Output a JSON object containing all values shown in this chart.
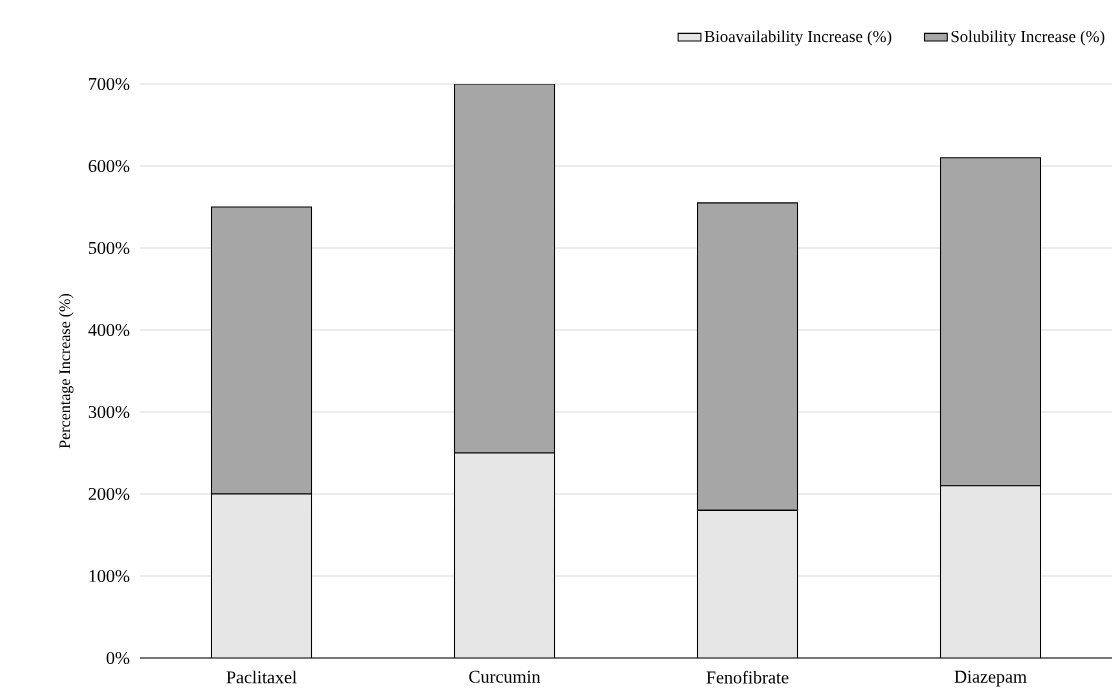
{
  "chart_data": {
    "type": "bar",
    "stacked": true,
    "ylabel": "Percentage Increase (%)",
    "categories": [
      "Paclitaxel",
      "Curcumin",
      "Fenofibrate",
      "Diazepam"
    ],
    "series": [
      {
        "name": "Bioavailability Increase (%)",
        "color": "#e6e6e6",
        "values": [
          200,
          250,
          180,
          210
        ]
      },
      {
        "name": "Solubility Increase (%)",
        "color": "#a6a6a6",
        "values": [
          350,
          450,
          375,
          400
        ]
      }
    ],
    "ylim": [
      0,
      700
    ],
    "yticks": [
      {
        "value": 0,
        "label": "0%"
      },
      {
        "value": 100,
        "label": "100%"
      },
      {
        "value": 200,
        "label": "200%"
      },
      {
        "value": 300,
        "label": "300%"
      },
      {
        "value": 400,
        "label": "400%"
      },
      {
        "value": 500,
        "label": "500%"
      },
      {
        "value": 600,
        "label": "600%"
      },
      {
        "value": 700,
        "label": "700%"
      }
    ],
    "grid": "y",
    "legend": "top right"
  }
}
